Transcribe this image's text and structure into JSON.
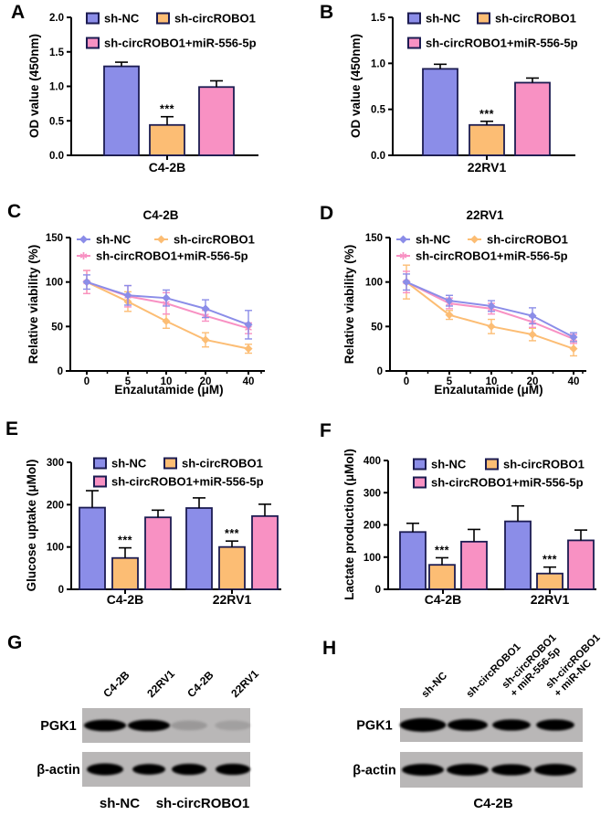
{
  "figure": {
    "panels": [
      {
        "id": "A",
        "letter": "A"
      },
      {
        "id": "B",
        "letter": "B"
      },
      {
        "id": "C",
        "letter": "C"
      },
      {
        "id": "D",
        "letter": "D"
      },
      {
        "id": "E",
        "letter": "E"
      },
      {
        "id": "F",
        "letter": "F"
      },
      {
        "id": "G",
        "letter": "G"
      },
      {
        "id": "H",
        "letter": "H"
      }
    ]
  },
  "colors": {
    "sh_nc": "#8b8de8",
    "sh_circrobo1": "#fcbd74",
    "sh_circrobo1_mir": "#f891c3",
    "outline": "#1c1c52",
    "axis": "#000000",
    "blot_bg": "#b9b7b7",
    "band": "#060606"
  },
  "chart_data": [
    {
      "panel": "A",
      "type": "bar",
      "ylabel": "OD value (450nm)",
      "ylim": [
        0,
        2.0
      ],
      "yticks": [
        0,
        0.5,
        1.0,
        1.5,
        2.0
      ],
      "ydec": 1,
      "categories": [
        "C4-2B"
      ],
      "series": [
        {
          "name": "sh-NC",
          "color_key": "sh_nc",
          "values": [
            1.29
          ],
          "err": [
            0.06
          ],
          "sig": [
            ""
          ]
        },
        {
          "name": "sh-circROBO1",
          "color_key": "sh_circrobo1",
          "values": [
            0.44
          ],
          "err": [
            0.12
          ],
          "sig": [
            "***"
          ]
        },
        {
          "name": "sh-circROBO1+miR-556-5p",
          "color_key": "sh_circrobo1_mir",
          "values": [
            0.99
          ],
          "err": [
            0.09
          ],
          "sig": [
            ""
          ]
        }
      ]
    },
    {
      "panel": "B",
      "type": "bar",
      "ylabel": "OD value (450nm)",
      "ylim": [
        0,
        1.5
      ],
      "yticks": [
        0,
        0.5,
        1.0,
        1.5
      ],
      "ydec": 1,
      "categories": [
        "22RV1"
      ],
      "series": [
        {
          "name": "sh-NC",
          "color_key": "sh_nc",
          "values": [
            0.94
          ],
          "err": [
            0.05
          ],
          "sig": [
            ""
          ]
        },
        {
          "name": "sh-circROBO1",
          "color_key": "sh_circrobo1",
          "values": [
            0.33
          ],
          "err": [
            0.04
          ],
          "sig": [
            "***"
          ]
        },
        {
          "name": "sh-circROBO1+miR-556-5p",
          "color_key": "sh_circrobo1_mir",
          "values": [
            0.79
          ],
          "err": [
            0.05
          ],
          "sig": [
            ""
          ]
        }
      ]
    },
    {
      "panel": "C",
      "type": "line",
      "title": "C4-2B",
      "ylabel": "Relative viability (%)",
      "xlabel": "Enzalutamide (μM)",
      "ylim": [
        0,
        150
      ],
      "yticks": [
        0,
        50,
        100,
        150
      ],
      "ydec": 0,
      "x": [
        "0",
        "5",
        "10",
        "20",
        "40"
      ],
      "series": [
        {
          "name": "sh-NC",
          "color_key": "sh_nc",
          "marker": "diamond",
          "values": [
            100,
            85,
            82,
            70,
            52
          ],
          "err": [
            8,
            11,
            9,
            10,
            16
          ]
        },
        {
          "name": "sh-circROBO1",
          "color_key": "sh_circrobo1",
          "marker": "diamond",
          "values": [
            100,
            78,
            56,
            35,
            25
          ],
          "err": [
            13,
            11,
            8,
            8,
            5
          ]
        },
        {
          "name": "sh-circROBO1+miR-556-5p",
          "color_key": "sh_circrobo1_mir",
          "marker": "star",
          "values": [
            100,
            84,
            76,
            62,
            48
          ],
          "err": [
            13,
            12,
            12,
            6,
            6
          ]
        }
      ]
    },
    {
      "panel": "D",
      "type": "line",
      "title": "22RV1",
      "ylabel": "Relative viability (%)",
      "xlabel": "Enzalutamide (μM)",
      "ylim": [
        0,
        150
      ],
      "yticks": [
        0,
        50,
        100,
        150
      ],
      "ydec": 0,
      "x": [
        "0",
        "5",
        "10",
        "20",
        "40"
      ],
      "series": [
        {
          "name": "sh-NC",
          "color_key": "sh_nc",
          "marker": "diamond",
          "values": [
            100,
            79,
            73,
            62,
            38
          ],
          "err": [
            9,
            6,
            6,
            9,
            5
          ]
        },
        {
          "name": "sh-circROBO1",
          "color_key": "sh_circrobo1",
          "marker": "diamond",
          "values": [
            100,
            63,
            50,
            41,
            25
          ],
          "err": [
            19,
            5,
            8,
            7,
            8
          ]
        },
        {
          "name": "sh-circROBO1+miR-556-5p",
          "color_key": "sh_circrobo1_mir",
          "marker": "star",
          "values": [
            100,
            76,
            70,
            55,
            36
          ],
          "err": [
            12,
            6,
            6,
            6,
            5
          ]
        }
      ]
    },
    {
      "panel": "E",
      "type": "bar",
      "ylabel": "Glucose uptake (μMol)",
      "ylim": [
        0,
        300
      ],
      "yticks": [
        0,
        100,
        200,
        300
      ],
      "ydec": 0,
      "categories": [
        "C4-2B",
        "22RV1"
      ],
      "series": [
        {
          "name": "sh-NC",
          "color_key": "sh_nc",
          "values": [
            193,
            192
          ],
          "err": [
            40,
            24
          ],
          "sig": [
            "",
            ""
          ]
        },
        {
          "name": "sh-circROBO1",
          "color_key": "sh_circrobo1",
          "values": [
            74,
            100
          ],
          "err": [
            24,
            14
          ],
          "sig": [
            "***",
            "***"
          ]
        },
        {
          "name": "sh-circROBO1+miR-556-5p",
          "color_key": "sh_circrobo1_mir",
          "values": [
            170,
            173
          ],
          "err": [
            17,
            28
          ],
          "sig": [
            "",
            ""
          ]
        }
      ]
    },
    {
      "panel": "F",
      "type": "bar",
      "ylabel": "Lactate production (μMol)",
      "ylim": [
        0,
        400
      ],
      "yticks": [
        0,
        100,
        200,
        300,
        400
      ],
      "ydec": 0,
      "categories": [
        "C4-2B",
        "22RV1"
      ],
      "series": [
        {
          "name": "sh-NC",
          "color_key": "sh_nc",
          "values": [
            178,
            211
          ],
          "err": [
            27,
            48
          ],
          "sig": [
            "",
            ""
          ]
        },
        {
          "name": "sh-circROBO1",
          "color_key": "sh_circrobo1",
          "values": [
            76,
            49
          ],
          "err": [
            22,
            20
          ],
          "sig": [
            "***",
            "***"
          ]
        },
        {
          "name": "sh-circROBO1+miR-556-5p",
          "color_key": "sh_circrobo1_mir",
          "values": [
            148,
            152
          ],
          "err": [
            38,
            32
          ],
          "sig": [
            "",
            ""
          ]
        }
      ]
    }
  ],
  "blots": [
    {
      "panel": "G",
      "lane_labels": [
        [
          "C4-2B"
        ],
        [
          "22RV1"
        ],
        [
          "C4-2B"
        ],
        [
          "22RV1"
        ]
      ],
      "rows": [
        {
          "name": "PGK1",
          "bands": [
            {
              "o": 1,
              "s": 1.05
            },
            {
              "o": 1,
              "s": 1.05
            },
            {
              "o": 0.16,
              "s": 0.9
            },
            {
              "o": 0.12,
              "s": 0.9
            }
          ]
        },
        {
          "name": "β-actin",
          "bands": [
            {
              "o": 1,
              "s": 1
            },
            {
              "o": 1,
              "s": 0.9
            },
            {
              "o": 1,
              "s": 0.95
            },
            {
              "o": 1,
              "s": 0.95
            }
          ]
        }
      ],
      "bottom_labels": [
        "sh-NC",
        "sh-circROBO1"
      ]
    },
    {
      "panel": "H",
      "lane_labels": [
        [
          "sh-NC"
        ],
        [
          "sh-circROBO1"
        ],
        [
          "sh-circROBO1",
          "+ miR-556-5p"
        ],
        [
          "sh-circROBO1",
          "+ miR-NC"
        ]
      ],
      "rows": [
        {
          "name": "PGK1",
          "bands": [
            {
              "o": 1,
              "s": 1.15
            },
            {
              "o": 1,
              "s": 1
            },
            {
              "o": 1,
              "s": 0.95
            },
            {
              "o": 1,
              "s": 0.95
            }
          ]
        },
        {
          "name": "β-actin",
          "bands": [
            {
              "o": 1,
              "s": 1
            },
            {
              "o": 1,
              "s": 1
            },
            {
              "o": 1,
              "s": 0.95
            },
            {
              "o": 1,
              "s": 1
            }
          ]
        }
      ],
      "bottom_labels": [
        "C4-2B"
      ]
    }
  ]
}
